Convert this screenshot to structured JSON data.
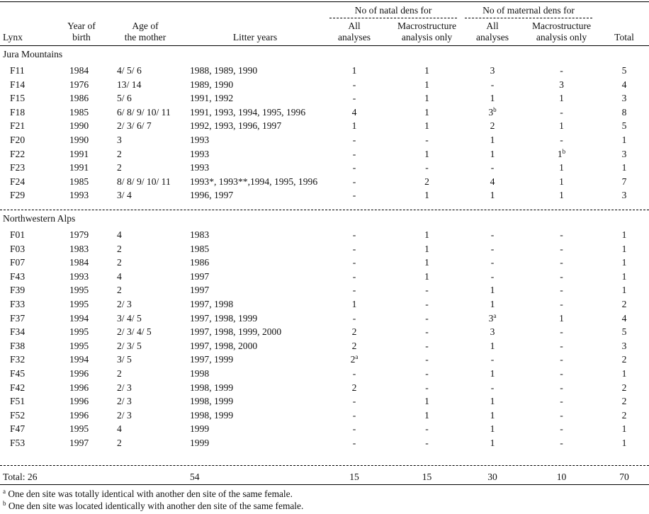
{
  "headers": {
    "lynx": "Lynx",
    "year_birth": [
      "Year of",
      "birth"
    ],
    "age_mother": [
      "Age of",
      "the mother"
    ],
    "litter_years": "Litter years",
    "natal_group": "No of natal dens for",
    "maternal_group": "No of maternal dens for",
    "all_analyses": [
      "All",
      "analyses"
    ],
    "macro_only": [
      "Macrostructure",
      "analysis only"
    ],
    "total": "Total"
  },
  "sections": [
    {
      "name": "Jura Mountains",
      "rows": [
        {
          "id": "F11",
          "year": "1984",
          "age": "4/ 5/ 6",
          "litters": "1988, 1989, 1990",
          "natal_all": "1",
          "natal_macro": "1",
          "mat_all": "3",
          "mat_all_sup": "",
          "mat_macro": "-",
          "mat_macro_sup": "",
          "total": "5",
          "natal_all_sup": ""
        },
        {
          "id": "F14",
          "year": "1976",
          "age": "13/ 14",
          "litters": "1989, 1990",
          "natal_all": "-",
          "natal_macro": "1",
          "mat_all": "-",
          "mat_all_sup": "",
          "mat_macro": "3",
          "mat_macro_sup": "",
          "total": "4",
          "natal_all_sup": ""
        },
        {
          "id": "F15",
          "year": "1986",
          "age": "5/ 6",
          "litters": "1991, 1992",
          "natal_all": "-",
          "natal_macro": "1",
          "mat_all": "1",
          "mat_all_sup": "",
          "mat_macro": "1",
          "mat_macro_sup": "",
          "total": "3",
          "natal_all_sup": ""
        },
        {
          "id": "F18",
          "year": "1985",
          "age": "6/ 8/ 9/ 10/ 11",
          "litters": "1991, 1993, 1994, 1995, 1996",
          "natal_all": "4",
          "natal_macro": "1",
          "mat_all": "3",
          "mat_all_sup": "b",
          "mat_macro": "-",
          "mat_macro_sup": "",
          "total": "8",
          "natal_all_sup": ""
        },
        {
          "id": "F21",
          "year": "1990",
          "age": "2/ 3/ 6/ 7",
          "litters": "1992, 1993, 1996, 1997",
          "natal_all": "1",
          "natal_macro": "1",
          "mat_all": "2",
          "mat_all_sup": "",
          "mat_macro": "1",
          "mat_macro_sup": "",
          "total": "5",
          "natal_all_sup": ""
        },
        {
          "id": "F20",
          "year": "1990",
          "age": "3",
          "litters": "1993",
          "natal_all": "-",
          "natal_macro": "-",
          "mat_all": "1",
          "mat_all_sup": "",
          "mat_macro": "-",
          "mat_macro_sup": "",
          "total": "1",
          "natal_all_sup": ""
        },
        {
          "id": "F22",
          "year": "1991",
          "age": "2",
          "litters": "1993",
          "natal_all": "-",
          "natal_macro": "1",
          "mat_all": "1",
          "mat_all_sup": "",
          "mat_macro": "1",
          "mat_macro_sup": "b",
          "total": "3",
          "natal_all_sup": ""
        },
        {
          "id": "F23",
          "year": "1991",
          "age": "2",
          "litters": "1993",
          "natal_all": "-",
          "natal_macro": "-",
          "mat_all": "-",
          "mat_all_sup": "",
          "mat_macro": "1",
          "mat_macro_sup": "",
          "total": "1",
          "natal_all_sup": ""
        },
        {
          "id": "F24",
          "year": "1985",
          "age": "8/ 8/ 9/ 10/ 11",
          "litters": "1993*, 1993**,1994, 1995, 1996",
          "natal_all": "-",
          "natal_macro": "2",
          "mat_all": "4",
          "mat_all_sup": "",
          "mat_macro": "1",
          "mat_macro_sup": "",
          "total": "7",
          "natal_all_sup": ""
        },
        {
          "id": "F29",
          "year": "1993",
          "age": "3/ 4",
          "litters": "1996, 1997",
          "natal_all": "-",
          "natal_macro": "1",
          "mat_all": "1",
          "mat_all_sup": "",
          "mat_macro": "1",
          "mat_macro_sup": "",
          "total": "3",
          "natal_all_sup": ""
        }
      ]
    },
    {
      "name": "Northwestern Alps",
      "rows": [
        {
          "id": "F01",
          "year": "1979",
          "age": "4",
          "litters": "1983",
          "natal_all": "-",
          "natal_macro": "1",
          "mat_all": "-",
          "mat_all_sup": "",
          "mat_macro": "-",
          "mat_macro_sup": "",
          "total": "1",
          "natal_all_sup": ""
        },
        {
          "id": "F03",
          "year": "1983",
          "age": "2",
          "litters": "1985",
          "natal_all": "-",
          "natal_macro": "1",
          "mat_all": "-",
          "mat_all_sup": "",
          "mat_macro": "-",
          "mat_macro_sup": "",
          "total": "1",
          "natal_all_sup": ""
        },
        {
          "id": "F07",
          "year": "1984",
          "age": "2",
          "litters": "1986",
          "natal_all": "-",
          "natal_macro": "1",
          "mat_all": "-",
          "mat_all_sup": "",
          "mat_macro": "-",
          "mat_macro_sup": "",
          "total": "1",
          "natal_all_sup": ""
        },
        {
          "id": "F43",
          "year": "1993",
          "age": "4",
          "litters": "1997",
          "natal_all": "-",
          "natal_macro": "1",
          "mat_all": "-",
          "mat_all_sup": "",
          "mat_macro": "-",
          "mat_macro_sup": "",
          "total": "1",
          "natal_all_sup": ""
        },
        {
          "id": "F39",
          "year": "1995",
          "age": "2",
          "litters": "1997",
          "natal_all": "-",
          "natal_macro": "-",
          "mat_all": "1",
          "mat_all_sup": "",
          "mat_macro": "-",
          "mat_macro_sup": "",
          "total": "1",
          "natal_all_sup": ""
        },
        {
          "id": "F33",
          "year": "1995",
          "age": "2/ 3",
          "litters": "1997, 1998",
          "natal_all": "1",
          "natal_macro": "-",
          "mat_all": "1",
          "mat_all_sup": "",
          "mat_macro": "-",
          "mat_macro_sup": "",
          "total": "2",
          "natal_all_sup": ""
        },
        {
          "id": "F37",
          "year": "1994",
          "age": "3/ 4/ 5",
          "litters": "1997, 1998, 1999",
          "natal_all": "-",
          "natal_macro": "-",
          "mat_all": "3",
          "mat_all_sup": "a",
          "mat_macro": "1",
          "mat_macro_sup": "",
          "total": "4",
          "natal_all_sup": ""
        },
        {
          "id": "F34",
          "year": "1995",
          "age": "2/ 3/ 4/ 5",
          "litters": "1997, 1998, 1999, 2000",
          "natal_all": "2",
          "natal_macro": "-",
          "mat_all": "3",
          "mat_all_sup": "",
          "mat_macro": "-",
          "mat_macro_sup": "",
          "total": "5",
          "natal_all_sup": ""
        },
        {
          "id": "F38",
          "year": "1995",
          "age": "2/ 3/ 5",
          "litters": "1997, 1998, 2000",
          "natal_all": "2",
          "natal_macro": "-",
          "mat_all": "1",
          "mat_all_sup": "",
          "mat_macro": "-",
          "mat_macro_sup": "",
          "total": "3",
          "natal_all_sup": ""
        },
        {
          "id": "F32",
          "year": "1994",
          "age": "3/ 5",
          "litters": "1997, 1999",
          "natal_all": "2",
          "natal_macro": "-",
          "mat_all": "-",
          "mat_all_sup": "",
          "mat_macro": "-",
          "mat_macro_sup": "",
          "total": "2",
          "natal_all_sup": "a"
        },
        {
          "id": "F45",
          "year": "1996",
          "age": "2",
          "litters": "1998",
          "natal_all": "-",
          "natal_macro": "-",
          "mat_all": "1",
          "mat_all_sup": "",
          "mat_macro": "-",
          "mat_macro_sup": "",
          "total": "1",
          "natal_all_sup": ""
        },
        {
          "id": "F42",
          "year": "1996",
          "age": "2/ 3",
          "litters": "1998, 1999",
          "natal_all": "2",
          "natal_macro": "-",
          "mat_all": "-",
          "mat_all_sup": "",
          "mat_macro": "-",
          "mat_macro_sup": "",
          "total": "2",
          "natal_all_sup": ""
        },
        {
          "id": "F51",
          "year": "1996",
          "age": "2/ 3",
          "litters": "1998, 1999",
          "natal_all": "-",
          "natal_macro": "1",
          "mat_all": "1",
          "mat_all_sup": "",
          "mat_macro": "-",
          "mat_macro_sup": "",
          "total": "2",
          "natal_all_sup": ""
        },
        {
          "id": "F52",
          "year": "1996",
          "age": "2/ 3",
          "litters": "1998, 1999",
          "natal_all": "-",
          "natal_macro": "1",
          "mat_all": "1",
          "mat_all_sup": "",
          "mat_macro": "-",
          "mat_macro_sup": "",
          "total": "2",
          "natal_all_sup": ""
        },
        {
          "id": "F47",
          "year": "1995",
          "age": "4",
          "litters": "1999",
          "natal_all": "-",
          "natal_macro": "-",
          "mat_all": "1",
          "mat_all_sup": "",
          "mat_macro": "-",
          "mat_macro_sup": "",
          "total": "1",
          "natal_all_sup": ""
        },
        {
          "id": "F53",
          "year": "1997",
          "age": "2",
          "litters": "1999",
          "natal_all": "-",
          "natal_macro": "-",
          "mat_all": "1",
          "mat_all_sup": "",
          "mat_macro": "-",
          "mat_macro_sup": "",
          "total": "1",
          "natal_all_sup": ""
        }
      ]
    }
  ],
  "totals": {
    "label": "Total: 26",
    "litters": "54",
    "natal_all": "15",
    "natal_macro": "15",
    "mat_all": "30",
    "mat_macro": "10",
    "total": "70"
  },
  "footnotes": [
    {
      "mark": "a",
      "text": "One den site was totally identical with another den site of the same female."
    },
    {
      "mark": "b",
      "text": "One den site was located identically with another den site of the same female."
    }
  ]
}
